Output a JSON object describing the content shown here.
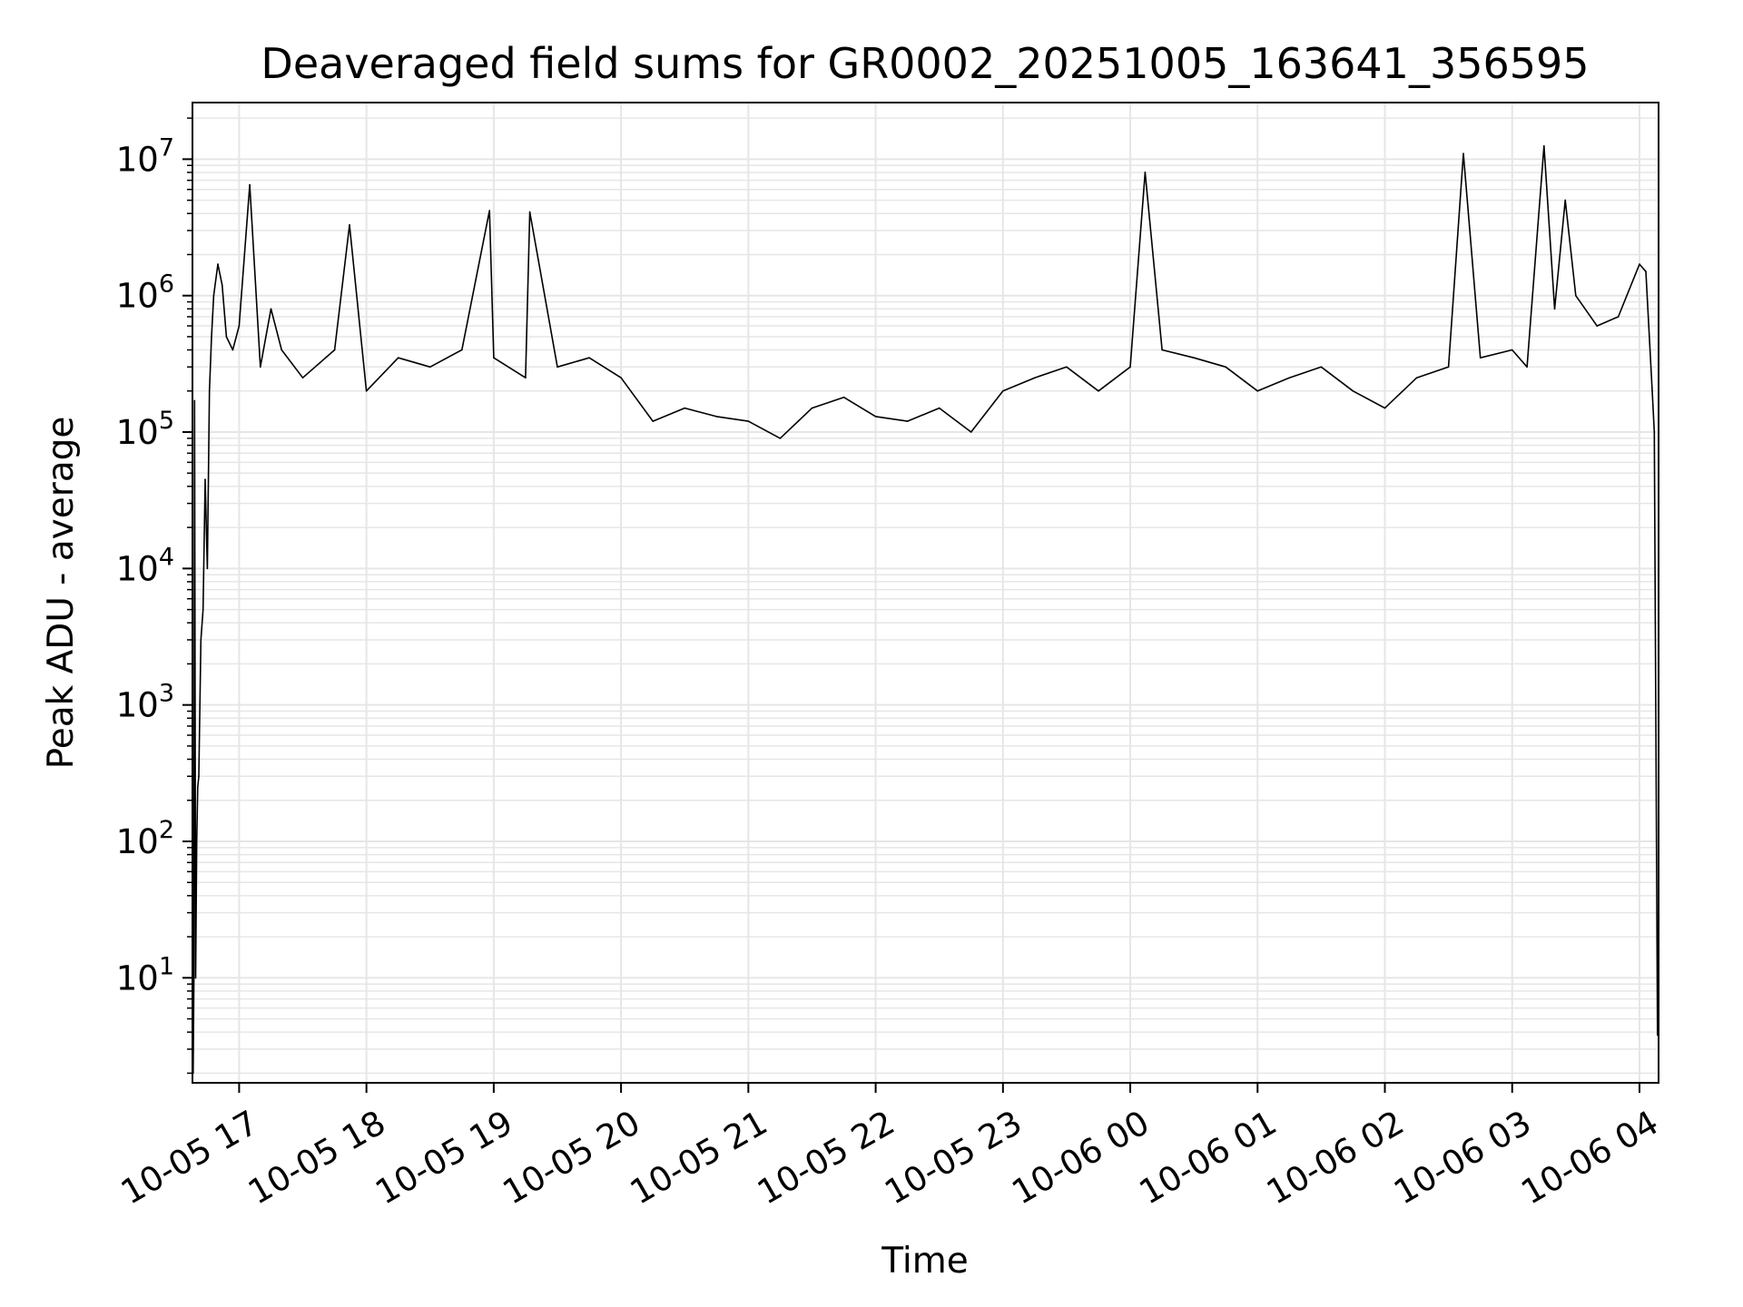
{
  "chart_data": {
    "type": "line",
    "title": "Deaveraged field sums for GR0002_20251005_163641_356595",
    "xlabel": "Time",
    "ylabel": "Peak ADU - average",
    "y_scale": "log",
    "xlim": [
      "2025-10-05T16:38:00",
      "2025-10-06T04:09:00"
    ],
    "ylim": [
      1.7,
      26000000
    ],
    "grid": {
      "major": true,
      "minor_y": true
    },
    "legend": "none",
    "line_color": "#000000",
    "grid_color": "#e6e6e6",
    "x_ticks": [
      {
        "value": "2025-10-05T17:00:00",
        "label": "10-05 17"
      },
      {
        "value": "2025-10-05T18:00:00",
        "label": "10-05 18"
      },
      {
        "value": "2025-10-05T19:00:00",
        "label": "10-05 19"
      },
      {
        "value": "2025-10-05T20:00:00",
        "label": "10-05 20"
      },
      {
        "value": "2025-10-05T21:00:00",
        "label": "10-05 21"
      },
      {
        "value": "2025-10-05T22:00:00",
        "label": "10-05 22"
      },
      {
        "value": "2025-10-05T23:00:00",
        "label": "10-05 23"
      },
      {
        "value": "2025-10-06T00:00:00",
        "label": "10-06 00"
      },
      {
        "value": "2025-10-06T01:00:00",
        "label": "10-06 01"
      },
      {
        "value": "2025-10-06T02:00:00",
        "label": "10-06 02"
      },
      {
        "value": "2025-10-06T03:00:00",
        "label": "10-06 03"
      },
      {
        "value": "2025-10-06T04:00:00",
        "label": "10-06 04"
      }
    ],
    "y_ticks": [
      {
        "value": 10,
        "base": "10",
        "exp": "1"
      },
      {
        "value": 100,
        "base": "10",
        "exp": "2"
      },
      {
        "value": 1000,
        "base": "10",
        "exp": "3"
      },
      {
        "value": 10000,
        "base": "10",
        "exp": "4"
      },
      {
        "value": 100000,
        "base": "10",
        "exp": "5"
      },
      {
        "value": 1000000,
        "base": "10",
        "exp": "6"
      },
      {
        "value": 10000000,
        "base": "10",
        "exp": "7"
      }
    ],
    "series": [
      {
        "x": [
          "2025-10-05T16:38:20",
          "2025-10-05T16:38:40",
          "2025-10-05T16:39:00",
          "2025-10-05T16:39:30",
          "2025-10-05T16:40:00",
          "2025-10-05T16:40:30",
          "2025-10-05T16:41:00",
          "2025-10-05T16:41:30",
          "2025-10-05T16:42:00",
          "2025-10-05T16:43:00",
          "2025-10-05T16:44:00",
          "2025-10-05T16:45:00",
          "2025-10-05T16:46:00",
          "2025-10-05T16:47:00",
          "2025-10-05T16:48:00",
          "2025-10-05T16:50:00",
          "2025-10-05T16:52:00",
          "2025-10-05T16:54:00",
          "2025-10-05T16:57:00",
          "2025-10-05T17:00:00",
          "2025-10-05T17:05:00",
          "2025-10-05T17:10:00",
          "2025-10-05T17:15:00",
          "2025-10-05T17:20:00",
          "2025-10-05T17:30:00",
          "2025-10-05T17:45:00",
          "2025-10-05T17:52:00",
          "2025-10-05T18:00:00",
          "2025-10-05T18:15:00",
          "2025-10-05T18:30:00",
          "2025-10-05T18:45:00",
          "2025-10-05T18:58:00",
          "2025-10-05T19:00:00",
          "2025-10-05T19:15:00",
          "2025-10-05T19:17:00",
          "2025-10-05T19:30:00",
          "2025-10-05T19:45:00",
          "2025-10-05T20:00:00",
          "2025-10-05T20:15:00",
          "2025-10-05T20:30:00",
          "2025-10-05T20:45:00",
          "2025-10-05T21:00:00",
          "2025-10-05T21:15:00",
          "2025-10-05T21:30:00",
          "2025-10-05T21:45:00",
          "2025-10-05T22:00:00",
          "2025-10-05T22:15:00",
          "2025-10-05T22:30:00",
          "2025-10-05T22:45:00",
          "2025-10-05T23:00:00",
          "2025-10-05T23:15:00",
          "2025-10-05T23:30:00",
          "2025-10-05T23:45:00",
          "2025-10-06T00:00:00",
          "2025-10-06T00:07:00",
          "2025-10-06T00:15:00",
          "2025-10-06T00:30:00",
          "2025-10-06T00:45:00",
          "2025-10-06T01:00:00",
          "2025-10-06T01:15:00",
          "2025-10-06T01:30:00",
          "2025-10-06T01:45:00",
          "2025-10-06T02:00:00",
          "2025-10-06T02:15:00",
          "2025-10-06T02:30:00",
          "2025-10-06T02:37:00",
          "2025-10-06T02:45:00",
          "2025-10-06T03:00:00",
          "2025-10-06T03:07:00",
          "2025-10-06T03:15:00",
          "2025-10-06T03:20:00",
          "2025-10-06T03:25:00",
          "2025-10-06T03:30:00",
          "2025-10-06T03:40:00",
          "2025-10-06T03:50:00",
          "2025-10-06T04:00:00",
          "2025-10-06T04:03:00",
          "2025-10-06T04:06:00",
          "2025-10-06T04:07:00",
          "2025-10-06T04:08:00",
          "2025-10-06T04:08:30"
        ],
        "y": [
          2,
          10,
          170000,
          10,
          100,
          250,
          300,
          1000,
          3000,
          5000,
          45000,
          10000,
          200000,
          500000,
          1000000,
          1700000,
          1200000,
          500000,
          400000,
          600000,
          6500000,
          300000,
          800000,
          400000,
          250000,
          400000,
          3300000,
          200000,
          350000,
          300000,
          400000,
          4200000,
          350000,
          250000,
          4100000,
          300000,
          350000,
          250000,
          120000,
          150000,
          130000,
          120000,
          90000,
          150000,
          180000,
          130000,
          120000,
          150000,
          100000,
          200000,
          250000,
          300000,
          200000,
          300000,
          8000000,
          400000,
          350000,
          300000,
          200000,
          250000,
          300000,
          200000,
          150000,
          250000,
          300000,
          11000000,
          350000,
          400000,
          300000,
          12500000,
          800000,
          5000000,
          1000000,
          600000,
          700000,
          1700000,
          1500000,
          200000,
          100000,
          100,
          3.8
        ]
      }
    ]
  }
}
